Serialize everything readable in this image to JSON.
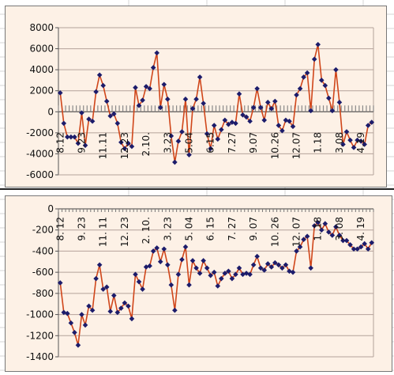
{
  "colors": {
    "background": "#fdf1e6",
    "line": "#d0461a",
    "marker": "#1c1c6b",
    "grid": "#b4a29a",
    "sheet_grid": "#d6d6d6"
  },
  "chart_data": [
    {
      "type": "line",
      "grid": true,
      "ylim": [
        -6000,
        8000
      ],
      "yticks": [
        -6000,
        -4000,
        -2000,
        0,
        2000,
        4000,
        6000,
        8000
      ],
      "ytick_labels": [
        "-6000",
        "-4000",
        "-2000",
        "0",
        "2000",
        "4000",
        "6000",
        "8000"
      ],
      "x_labels": [
        {
          "index": 0,
          "text": "8.12"
        },
        {
          "index": 6,
          "text": "9.23"
        },
        {
          "index": 12,
          "text": "11.11"
        },
        {
          "index": 18,
          "text": "12.23"
        },
        {
          "index": 24,
          "text": "2.10."
        },
        {
          "index": 30,
          "text": "3.23"
        },
        {
          "index": 36,
          "text": "5.04"
        },
        {
          "index": 42,
          "text": "6.15"
        },
        {
          "index": 48,
          "text": "7.27"
        },
        {
          "index": 54,
          "text": "9.07"
        },
        {
          "index": 60,
          "text": "10.26"
        },
        {
          "index": 66,
          "text": "12.07"
        },
        {
          "index": 72,
          "text": "1.18"
        },
        {
          "index": 78,
          "text": "3.08"
        },
        {
          "index": 84,
          "text": "4.19"
        }
      ],
      "values": [
        1800,
        -1100,
        -2400,
        -2400,
        -2400,
        -3000,
        -100,
        -3200,
        -700,
        -900,
        1900,
        3500,
        2500,
        1000,
        -400,
        -200,
        -1100,
        -2900,
        -3500,
        -3000,
        -3300,
        2300,
        600,
        1100,
        2400,
        2200,
        4200,
        5600,
        400,
        2600,
        1200,
        -2300,
        -4800,
        -2800,
        -1900,
        1200,
        -4100,
        300,
        1200,
        3300,
        800,
        -2100,
        -3500,
        -1300,
        -2600,
        -1700,
        -800,
        -1200,
        -1000,
        -1100,
        1700,
        -300,
        -500,
        -900,
        400,
        2200,
        400,
        -800,
        900,
        300,
        1000,
        -1300,
        -1800,
        -800,
        -900,
        -1400,
        1600,
        2200,
        3300,
        3700,
        100,
        5000,
        6400,
        3000,
        2500,
        1300,
        100,
        4000,
        900,
        -3100,
        -1900,
        -2700,
        -3400,
        -2700,
        -2800,
        -3100,
        -1300,
        -1000
      ]
    },
    {
      "type": "line",
      "grid": true,
      "ylim": [
        -1400,
        0
      ],
      "yticks": [
        -1400,
        -1200,
        -1000,
        -800,
        -600,
        -400,
        -200,
        0
      ],
      "ytick_labels": [
        "-1400",
        "-1200",
        "-1000",
        "-800",
        "-600",
        "-400",
        "-200",
        "0"
      ],
      "x_labels": [
        {
          "index": 0,
          "text": "8. 12"
        },
        {
          "index": 6,
          "text": "9. 23"
        },
        {
          "index": 12,
          "text": "11. 11"
        },
        {
          "index": 18,
          "text": "12. 23"
        },
        {
          "index": 24,
          "text": "2. 10."
        },
        {
          "index": 30,
          "text": "3. 23"
        },
        {
          "index": 36,
          "text": "5. 04"
        },
        {
          "index": 42,
          "text": "6. 15"
        },
        {
          "index": 48,
          "text": "7. 27"
        },
        {
          "index": 54,
          "text": "9. 07"
        },
        {
          "index": 60,
          "text": "10. 26"
        },
        {
          "index": 66,
          "text": "12. 07"
        },
        {
          "index": 72,
          "text": "1. 18"
        },
        {
          "index": 78,
          "text": "3. 08"
        },
        {
          "index": 84,
          "text": "4. 19"
        }
      ],
      "values": [
        -700,
        -980,
        -990,
        -1080,
        -1170,
        -1290,
        -1000,
        -1100,
        -920,
        -960,
        -660,
        -530,
        -760,
        -740,
        -970,
        -820,
        -980,
        -940,
        -890,
        -920,
        -1040,
        -620,
        -690,
        -760,
        -550,
        -540,
        -400,
        -370,
        -500,
        -380,
        -530,
        -720,
        -960,
        -620,
        -480,
        -360,
        -720,
        -490,
        -560,
        -610,
        -490,
        -560,
        -630,
        -600,
        -730,
        -660,
        -610,
        -590,
        -660,
        -620,
        -560,
        -620,
        -610,
        -620,
        -530,
        -450,
        -560,
        -580,
        -520,
        -550,
        -510,
        -530,
        -560,
        -530,
        -590,
        -600,
        -400,
        -360,
        -290,
        -260,
        -560,
        -160,
        -130,
        -200,
        -140,
        -220,
        -250,
        -170,
        -250,
        -300,
        -300,
        -340,
        -380,
        -380,
        -360,
        -330,
        -380,
        -320
      ]
    }
  ]
}
